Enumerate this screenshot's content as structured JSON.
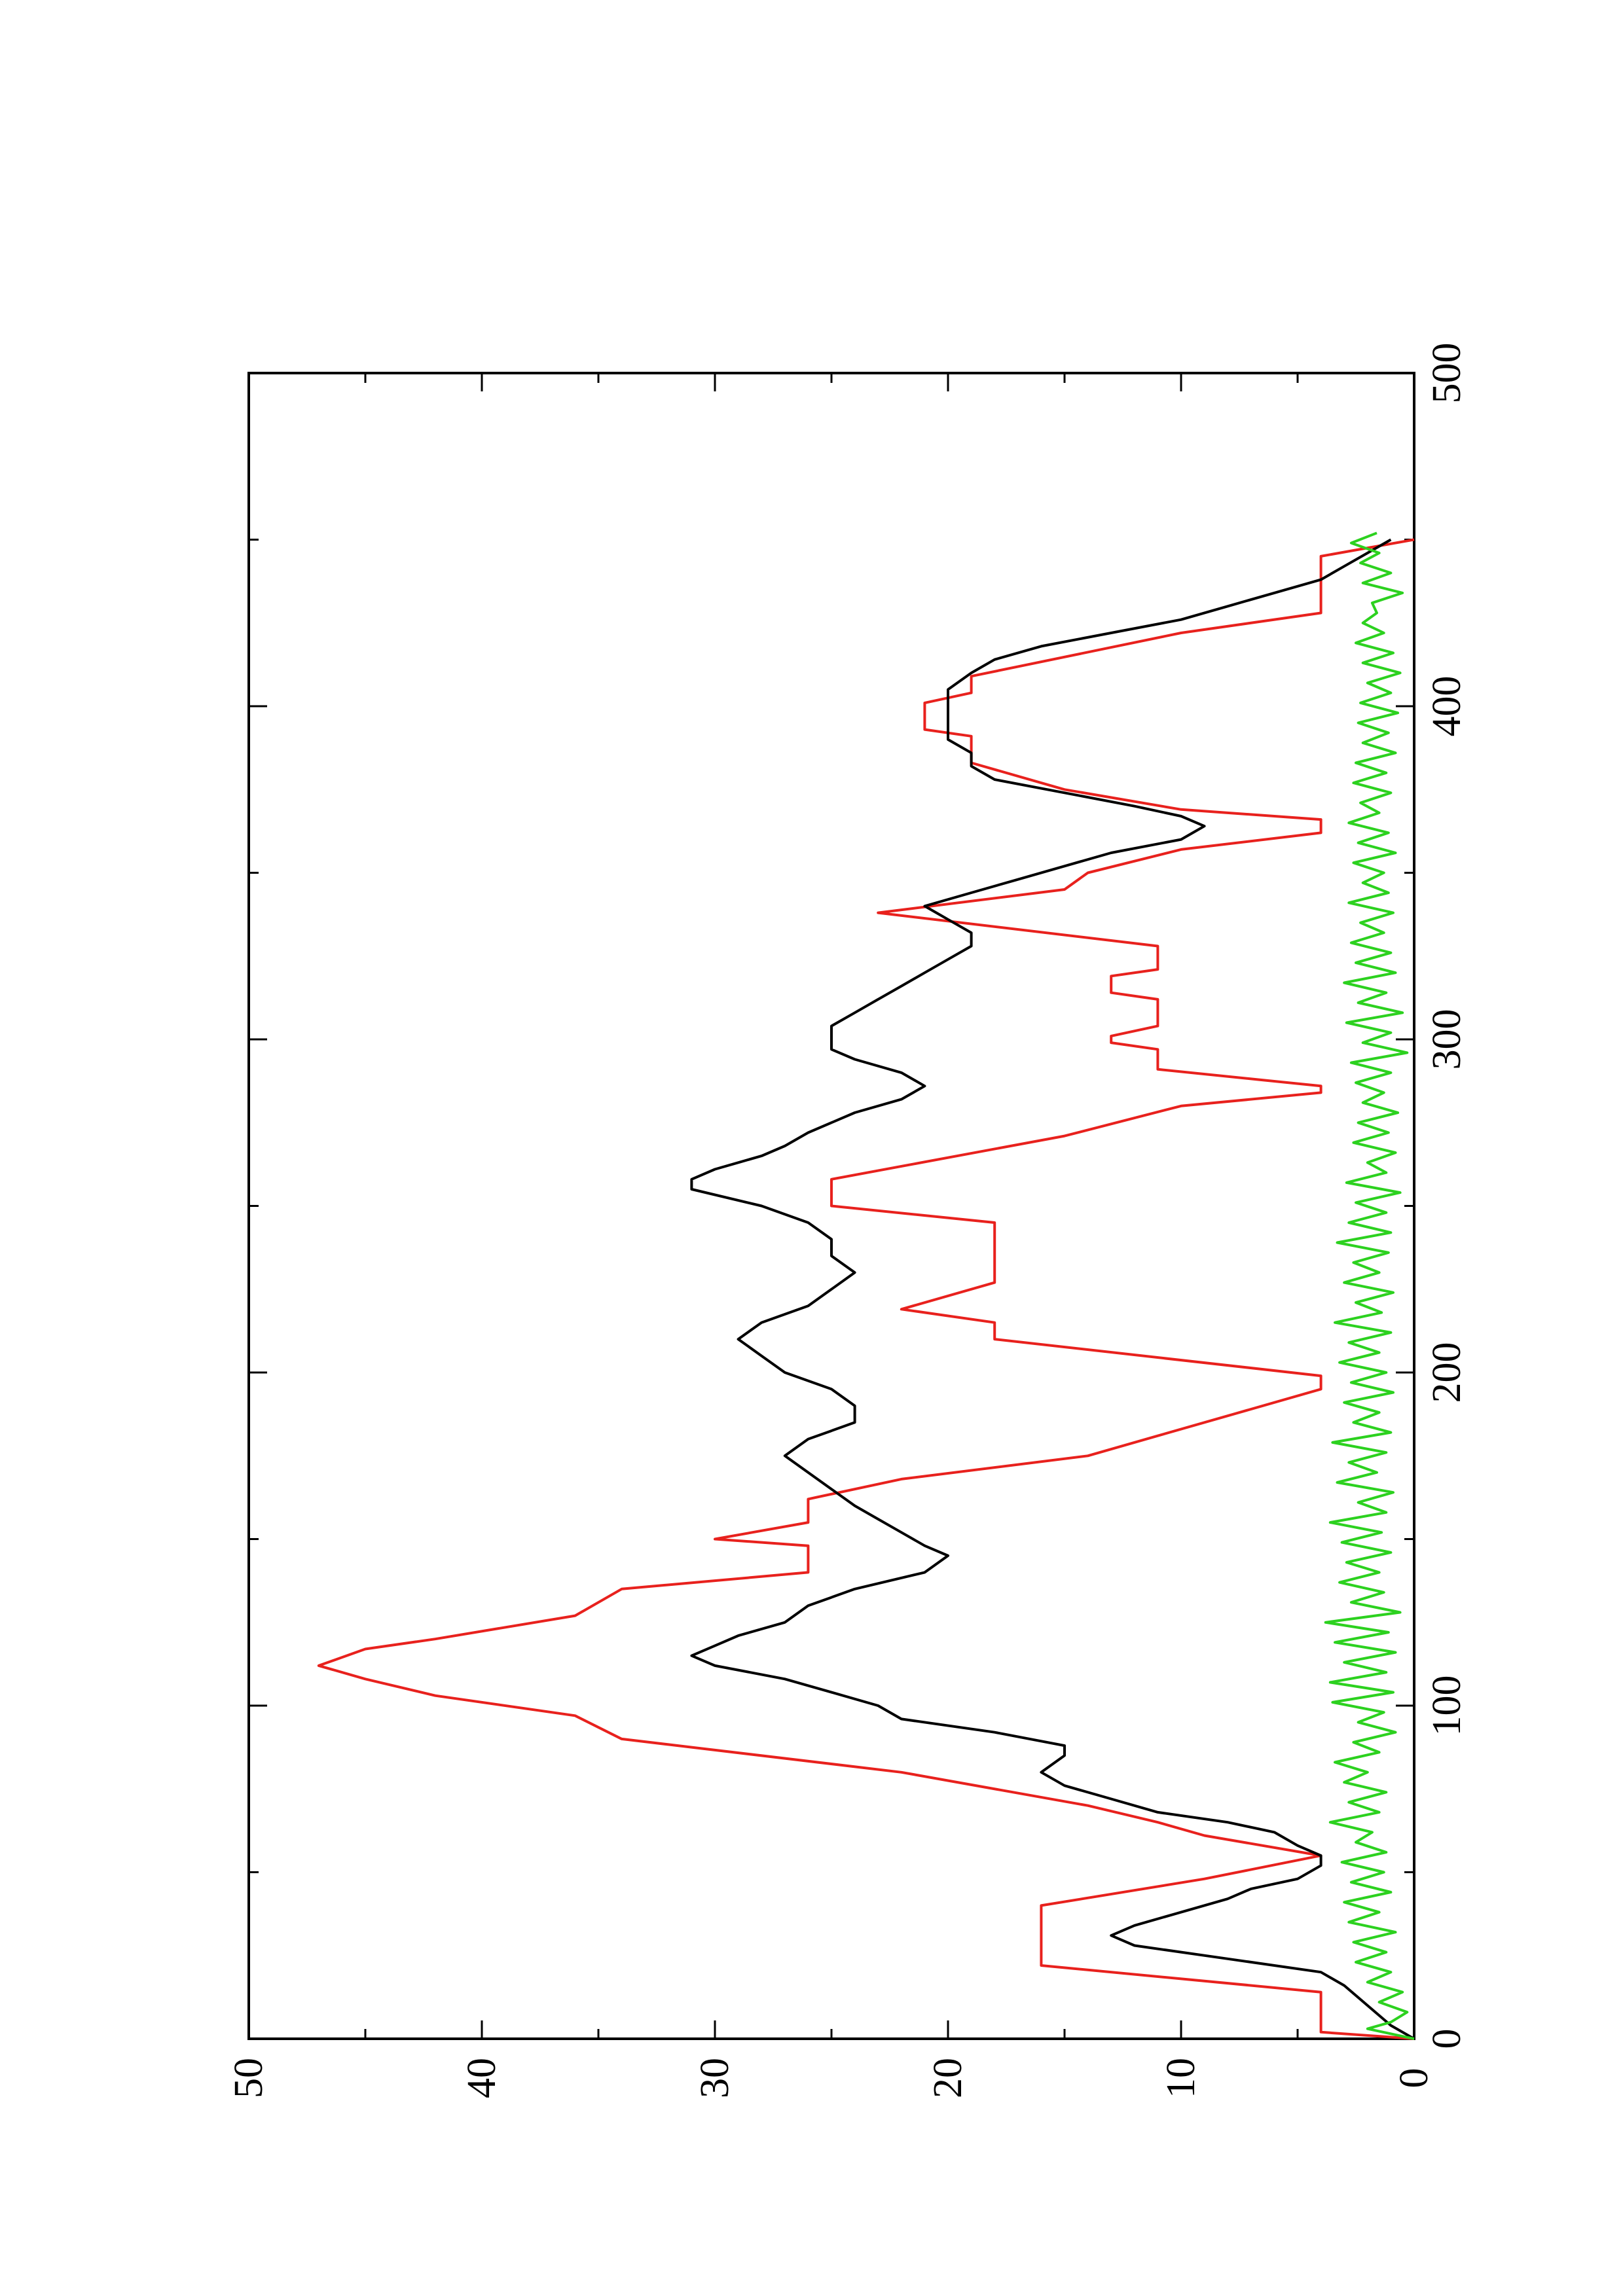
{
  "chart_data": {
    "type": "line",
    "orientation": "rotated-90-ccw",
    "title": "",
    "xlabel": "",
    "ylabel": "",
    "xlim": [
      0,
      500
    ],
    "ylim": [
      0,
      50
    ],
    "x_ticks": [
      0,
      100,
      200,
      300,
      400,
      500
    ],
    "y_ticks": [
      0,
      10,
      20,
      30,
      40,
      50
    ],
    "x_tick_labels": [
      "0",
      "100",
      "200",
      "300",
      "400",
      "500"
    ],
    "y_tick_labels": [
      "0",
      "10",
      "20",
      "30",
      "40",
      "50"
    ],
    "x_minor_step": 50,
    "y_minor_step": 5,
    "grid": false,
    "legend": "none",
    "series": [
      {
        "color": "#e8211d",
        "style": "step",
        "points": [
          [
            0,
            0
          ],
          [
            2,
            4
          ],
          [
            14,
            4
          ],
          [
            22,
            16
          ],
          [
            40,
            16
          ],
          [
            48,
            9
          ],
          [
            55,
            4
          ],
          [
            61,
            9
          ],
          [
            65,
            11
          ],
          [
            70,
            14
          ],
          [
            80,
            22
          ],
          [
            90,
            34
          ],
          [
            97,
            36
          ],
          [
            103,
            42
          ],
          [
            108,
            45
          ],
          [
            112,
            47
          ],
          [
            117,
            45
          ],
          [
            120,
            42
          ],
          [
            127,
            36
          ],
          [
            135,
            34
          ],
          [
            140,
            26
          ],
          [
            148,
            26
          ],
          [
            150,
            30
          ],
          [
            155,
            26
          ],
          [
            162,
            26
          ],
          [
            168,
            22
          ],
          [
            175,
            14
          ],
          [
            181,
            11
          ],
          [
            187,
            8
          ],
          [
            195,
            4
          ],
          [
            199,
            4
          ],
          [
            210,
            18
          ],
          [
            215,
            18
          ],
          [
            219,
            22
          ],
          [
            227,
            18
          ],
          [
            245,
            18
          ],
          [
            250,
            25
          ],
          [
            258,
            25
          ],
          [
            271,
            15
          ],
          [
            280,
            10
          ],
          [
            284,
            4
          ],
          [
            286,
            4
          ],
          [
            291,
            11
          ],
          [
            297,
            11
          ],
          [
            299,
            13
          ],
          [
            301,
            13
          ],
          [
            304,
            11
          ],
          [
            312,
            11
          ],
          [
            314,
            13
          ],
          [
            319,
            13
          ],
          [
            321,
            11
          ],
          [
            328,
            11
          ],
          [
            338,
            23
          ],
          [
            345,
            15
          ],
          [
            350,
            14
          ],
          [
            357,
            10
          ],
          [
            362,
            4
          ],
          [
            366,
            4
          ],
          [
            369,
            10
          ],
          [
            375,
            15
          ],
          [
            383,
            19
          ],
          [
            391,
            19
          ],
          [
            393,
            21
          ],
          [
            397,
            21
          ],
          [
            401,
            21
          ],
          [
            404,
            19
          ],
          [
            409,
            19
          ],
          [
            422,
            10
          ],
          [
            428,
            4
          ],
          [
            445,
            4
          ],
          [
            450,
            0
          ]
        ]
      },
      {
        "color": "#000000",
        "style": "line",
        "points": [
          [
            0,
            0
          ],
          [
            4,
            1
          ],
          [
            10,
            2
          ],
          [
            16,
            3
          ],
          [
            20,
            4
          ],
          [
            24,
            8
          ],
          [
            28,
            12
          ],
          [
            31,
            13
          ],
          [
            34,
            12
          ],
          [
            38,
            10
          ],
          [
            42,
            8
          ],
          [
            45,
            7
          ],
          [
            48,
            5
          ],
          [
            52,
            4
          ],
          [
            55,
            4
          ],
          [
            58,
            5
          ],
          [
            62,
            6
          ],
          [
            65,
            8
          ],
          [
            68,
            11
          ],
          [
            72,
            13
          ],
          [
            76,
            15
          ],
          [
            80,
            16
          ],
          [
            85,
            15
          ],
          [
            88,
            15
          ],
          [
            92,
            18
          ],
          [
            96,
            22
          ],
          [
            100,
            23
          ],
          [
            104,
            25
          ],
          [
            108,
            27
          ],
          [
            112,
            30
          ],
          [
            115,
            31
          ],
          [
            118,
            30
          ],
          [
            121,
            29
          ],
          [
            125,
            27
          ],
          [
            130,
            26
          ],
          [
            135,
            24
          ],
          [
            140,
            21
          ],
          [
            145,
            20
          ],
          [
            148,
            21
          ],
          [
            152,
            22
          ],
          [
            156,
            23
          ],
          [
            160,
            24
          ],
          [
            165,
            25
          ],
          [
            170,
            26
          ],
          [
            175,
            27
          ],
          [
            180,
            26
          ],
          [
            185,
            24
          ],
          [
            190,
            24
          ],
          [
            195,
            25
          ],
          [
            200,
            27
          ],
          [
            205,
            28
          ],
          [
            210,
            29
          ],
          [
            215,
            28
          ],
          [
            220,
            26
          ],
          [
            225,
            25
          ],
          [
            230,
            24
          ],
          [
            235,
            25
          ],
          [
            240,
            25
          ],
          [
            245,
            26
          ],
          [
            250,
            28
          ],
          [
            255,
            31
          ],
          [
            258,
            31
          ],
          [
            261,
            30
          ],
          [
            265,
            28
          ],
          [
            268,
            27
          ],
          [
            272,
            26
          ],
          [
            278,
            24
          ],
          [
            282,
            22
          ],
          [
            286,
            21
          ],
          [
            290,
            22
          ],
          [
            294,
            24
          ],
          [
            297,
            25
          ],
          [
            300,
            25
          ],
          [
            304,
            25
          ],
          [
            308,
            24
          ],
          [
            312,
            23
          ],
          [
            316,
            22
          ],
          [
            320,
            21
          ],
          [
            324,
            20
          ],
          [
            328,
            19
          ],
          [
            332,
            19
          ],
          [
            336,
            20
          ],
          [
            340,
            21
          ],
          [
            344,
            19
          ],
          [
            348,
            17
          ],
          [
            352,
            15
          ],
          [
            356,
            13
          ],
          [
            360,
            10
          ],
          [
            364,
            9
          ],
          [
            367,
            10
          ],
          [
            370,
            12
          ],
          [
            374,
            15
          ],
          [
            378,
            18
          ],
          [
            382,
            19
          ],
          [
            386,
            19
          ],
          [
            390,
            20
          ],
          [
            395,
            20
          ],
          [
            400,
            20
          ],
          [
            405,
            20
          ],
          [
            410,
            19
          ],
          [
            414,
            18
          ],
          [
            418,
            16
          ],
          [
            422,
            13
          ],
          [
            426,
            10
          ],
          [
            430,
            8
          ],
          [
            434,
            6
          ],
          [
            438,
            4
          ],
          [
            442,
            3
          ],
          [
            446,
            2
          ],
          [
            450,
            1
          ]
        ]
      },
      {
        "color": "#2cd11f",
        "style": "line",
        "points": [
          [
            0,
            0
          ],
          [
            3,
            2
          ],
          [
            5,
            1
          ],
          [
            8,
            0.3
          ],
          [
            11,
            1.5
          ],
          [
            14,
            0.5
          ],
          [
            17,
            2
          ],
          [
            20,
            1
          ],
          [
            23,
            2.5
          ],
          [
            26,
            1.2
          ],
          [
            29,
            2.6
          ],
          [
            32,
            0.8
          ],
          [
            35,
            2.8
          ],
          [
            38,
            1.5
          ],
          [
            41,
            3
          ],
          [
            44,
            1
          ],
          [
            47,
            2.7
          ],
          [
            50,
            1.3
          ],
          [
            53,
            3.1
          ],
          [
            56,
            1.2
          ],
          [
            59,
            2.5
          ],
          [
            62,
            1.8
          ],
          [
            65,
            3.6
          ],
          [
            68,
            1.5
          ],
          [
            71,
            2.8
          ],
          [
            74,
            1.2
          ],
          [
            77,
            3
          ],
          [
            80,
            2
          ],
          [
            83,
            3.4
          ],
          [
            86,
            1.5
          ],
          [
            89,
            2.6
          ],
          [
            92,
            0.8
          ],
          [
            95,
            2.4
          ],
          [
            98,
            1.3
          ],
          [
            101,
            3.5
          ],
          [
            104,
            0.9
          ],
          [
            107,
            3.6
          ],
          [
            110,
            1.2
          ],
          [
            113,
            3
          ],
          [
            116,
            0.8
          ],
          [
            119,
            3.4
          ],
          [
            122,
            1.1
          ],
          [
            125,
            3.8
          ],
          [
            128,
            0.6
          ],
          [
            131,
            2.7
          ],
          [
            134,
            1.3
          ],
          [
            137,
            3.2
          ],
          [
            140,
            1.5
          ],
          [
            143,
            2.9
          ],
          [
            146,
            1
          ],
          [
            149,
            3.1
          ],
          [
            152,
            1.4
          ],
          [
            155,
            3.6
          ],
          [
            158,
            1.2
          ],
          [
            161,
            2.4
          ],
          [
            164,
            0.9
          ],
          [
            167,
            3.3
          ],
          [
            170,
            1.6
          ],
          [
            173,
            2.8
          ],
          [
            176,
            1.2
          ],
          [
            179,
            3.5
          ],
          [
            182,
            1
          ],
          [
            185,
            2.6
          ],
          [
            188,
            1.5
          ],
          [
            191,
            3
          ],
          [
            194,
            0.9
          ],
          [
            197,
            2.7
          ],
          [
            200,
            1.2
          ],
          [
            203,
            3.2
          ],
          [
            206,
            1.5
          ],
          [
            209,
            2.8
          ],
          [
            212,
            1
          ],
          [
            215,
            3.4
          ],
          [
            218,
            1.4
          ],
          [
            221,
            2.5
          ],
          [
            224,
            0.9
          ],
          [
            227,
            3
          ],
          [
            230,
            1.5
          ],
          [
            233,
            2.6
          ],
          [
            236,
            1.1
          ],
          [
            239,
            3.3
          ],
          [
            242,
            1
          ],
          [
            245,
            2.8
          ],
          [
            248,
            1.2
          ],
          [
            251,
            2.5
          ],
          [
            254,
            0.6
          ],
          [
            257,
            2.9
          ],
          [
            260,
            1.2
          ],
          [
            263,
            2
          ],
          [
            266,
            0.8
          ],
          [
            269,
            2.6
          ],
          [
            272,
            1.1
          ],
          [
            275,
            2.4
          ],
          [
            278,
            0.7
          ],
          [
            281,
            2.2
          ],
          [
            284,
            1.3
          ],
          [
            287,
            2.5
          ],
          [
            290,
            1
          ],
          [
            293,
            2.7
          ],
          [
            296,
            0.3
          ],
          [
            299,
            2.2
          ],
          [
            302,
            1
          ],
          [
            305,
            2.9
          ],
          [
            308,
            0.5
          ],
          [
            311,
            2.4
          ],
          [
            314,
            1.2
          ],
          [
            317,
            3
          ],
          [
            320,
            0.8
          ],
          [
            323,
            2.5
          ],
          [
            326,
            1
          ],
          [
            329,
            2.7
          ],
          [
            332,
            1.3
          ],
          [
            335,
            2.3
          ],
          [
            338,
            0.9
          ],
          [
            341,
            2.8
          ],
          [
            344,
            1.1
          ],
          [
            347,
            2.2
          ],
          [
            350,
            1.3
          ],
          [
            353,
            2.6
          ],
          [
            356,
            0.8
          ],
          [
            359,
            2.4
          ],
          [
            362,
            1.1
          ],
          [
            365,
            2.8
          ],
          [
            368,
            1.5
          ],
          [
            371,
            2.3
          ],
          [
            374,
            1
          ],
          [
            377,
            2.6
          ],
          [
            380,
            1.2
          ],
          [
            383,
            2.5
          ],
          [
            386,
            0.8
          ],
          [
            389,
            2.2
          ],
          [
            392,
            1.1
          ],
          [
            395,
            2.4
          ],
          [
            398,
            0.7
          ],
          [
            401,
            2.3
          ],
          [
            404,
            1
          ],
          [
            407,
            2
          ],
          [
            410,
            0.6
          ],
          [
            413,
            2.2
          ],
          [
            416,
            0.9
          ],
          [
            419,
            2.5
          ],
          [
            422,
            1.3
          ],
          [
            425,
            2.2
          ],
          [
            428,
            1.6
          ],
          [
            431,
            1.8
          ],
          [
            434,
            0.5
          ],
          [
            437,
            2.2
          ],
          [
            440,
            1
          ],
          [
            443,
            2.3
          ],
          [
            446,
            1.5
          ],
          [
            449,
            2.7
          ],
          [
            452,
            1.6
          ]
        ]
      }
    ]
  }
}
